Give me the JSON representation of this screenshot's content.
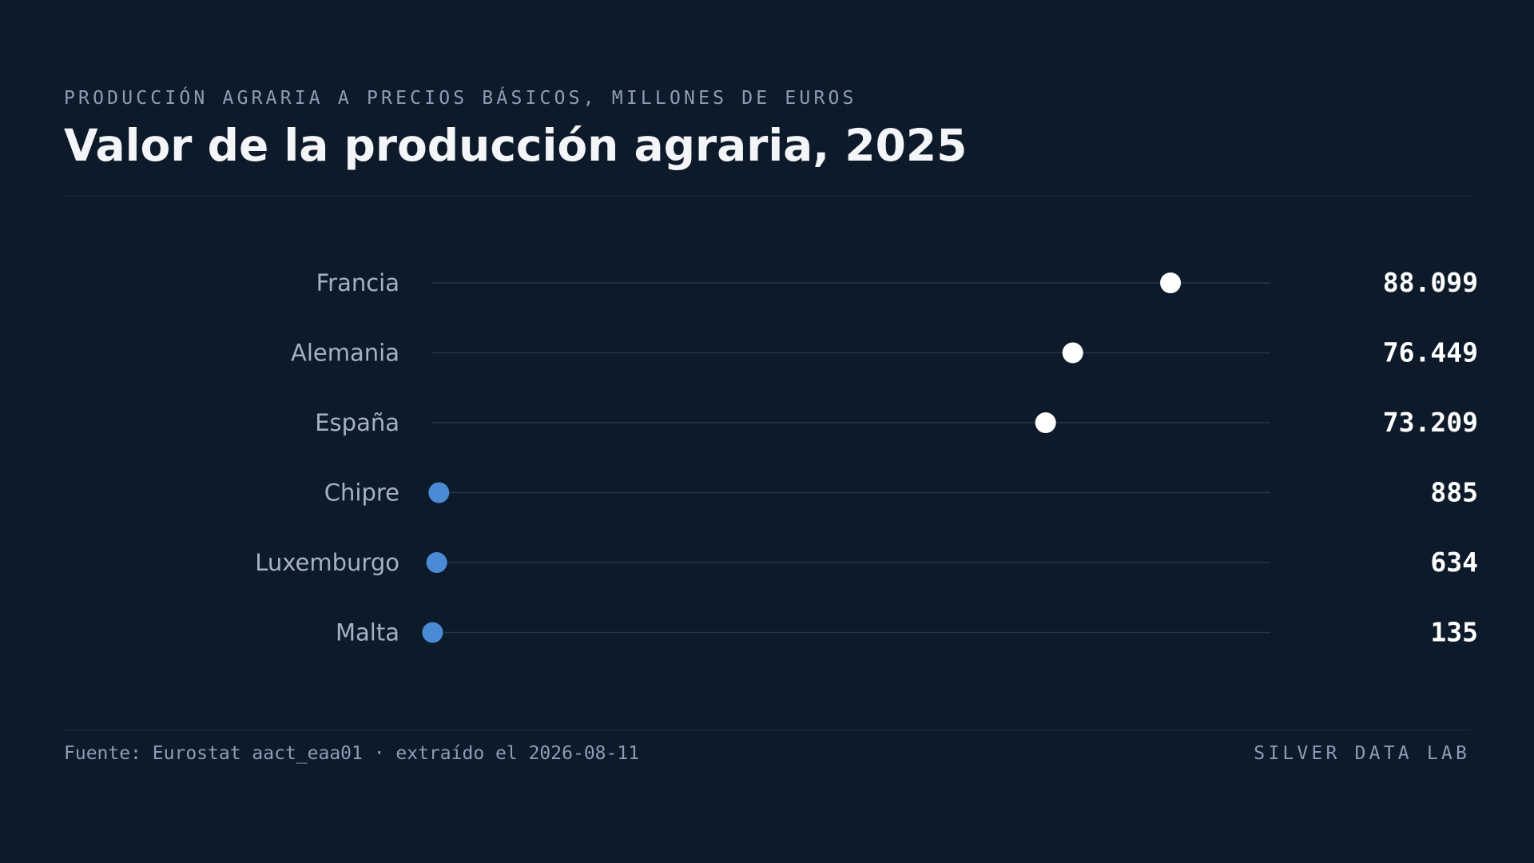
{
  "header": {
    "kicker": "PRODUCCIÓN AGRARIA A PRECIOS BÁSICOS, MILLONES DE EUROS",
    "title": "Valor de la producción agraria, 2025"
  },
  "footer": {
    "source": "Fuente: Eurostat aact_eaa01 · extraído el 2026-08-11",
    "brand": "SILVER DATA LAB"
  },
  "colors": {
    "background": "#0d1a2a",
    "highlight_dot": "#ffffff",
    "small_dot": "#4a8bd6",
    "track": "#22354c",
    "category_label": "#a3b2c7",
    "value_label": "#ffffff"
  },
  "chart_data": {
    "type": "dot",
    "title": "Valor de la producción agraria, 2025",
    "subtitle": "PRODUCCIÓN AGRARIA A PRECIOS BÁSICOS, MILLONES DE EUROS",
    "unit": "millones de euros",
    "xlim": [
      0,
      100000
    ],
    "grid": false,
    "legend": "none",
    "categories": [
      "Francia",
      "Alemania",
      "España",
      "Chipre",
      "Luxemburgo",
      "Malta"
    ],
    "values": [
      88099,
      76449,
      73209,
      885,
      634,
      135
    ],
    "value_labels": [
      "88.099",
      "76.449",
      "73.209",
      "885",
      "634",
      "135"
    ],
    "highlighted": [
      true,
      true,
      true,
      false,
      false,
      false
    ]
  }
}
